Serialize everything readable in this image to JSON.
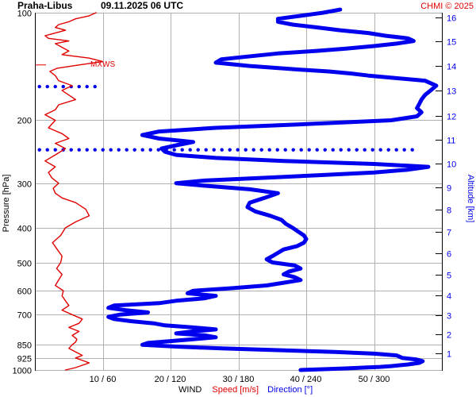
{
  "chart_data": {
    "type": "line",
    "title": "Praha-Libus",
    "datetime": "09.11.2025 06 UTC",
    "credit": "CHMI © 2025",
    "annotation": "MXWS",
    "annotation_pressure": 140,
    "left_axis": {
      "label": "Pressure [hPa]",
      "scale": "log",
      "range": [
        100,
        1000
      ],
      "ticks": [
        100,
        200,
        300,
        400,
        500,
        600,
        700,
        850,
        925,
        1000
      ]
    },
    "right_axis": {
      "label": "Altitude [km]",
      "ticks": [
        1,
        2,
        3,
        4,
        5,
        6,
        7,
        8,
        9,
        10,
        11,
        12,
        13,
        14,
        15,
        16
      ],
      "tick_pressures": [
        900,
        795,
        701,
        617,
        541,
        472,
        410,
        356,
        308,
        265,
        227,
        194,
        165,
        141,
        120,
        103
      ]
    },
    "bottom_axis": {
      "labels": [
        "10 / 60",
        "20 / 120",
        "30 / 180",
        "40 / 240",
        "50 / 300"
      ],
      "ticks": [
        10,
        20,
        30,
        40,
        50
      ],
      "range": [
        0,
        60
      ],
      "title_prefix": "WIND",
      "speed_label": "Speed [m/s]",
      "direction_label": "Direction [°]"
    },
    "grid": true,
    "colors": {
      "speed": "#e00000",
      "direction": "#0000ee",
      "grid": "#b0b0b0",
      "text": "#000000",
      "credit": "#e00000"
    },
    "series": [
      {
        "name": "Speed [m/s]",
        "units": "m/s",
        "points": [
          [
            1000,
            4.5
          ],
          [
            985,
            6
          ],
          [
            970,
            7
          ],
          [
            955,
            8
          ],
          [
            940,
            7
          ],
          [
            925,
            6
          ],
          [
            910,
            7
          ],
          [
            890,
            6
          ],
          [
            870,
            5
          ],
          [
            850,
            5.5
          ],
          [
            835,
            6
          ],
          [
            820,
            6.2
          ],
          [
            800,
            5.5
          ],
          [
            780,
            6.5
          ],
          [
            760,
            5
          ],
          [
            740,
            6.5
          ],
          [
            720,
            7
          ],
          [
            700,
            5.5
          ],
          [
            680,
            4
          ],
          [
            660,
            5
          ],
          [
            640,
            4.5
          ],
          [
            620,
            4
          ],
          [
            600,
            4.2
          ],
          [
            580,
            3
          ],
          [
            560,
            3.5
          ],
          [
            540,
            4
          ],
          [
            520,
            3.2
          ],
          [
            500,
            3.8
          ],
          [
            480,
            4
          ],
          [
            460,
            3.3
          ],
          [
            440,
            2.6
          ],
          [
            420,
            3.8
          ],
          [
            400,
            4.5
          ],
          [
            385,
            6
          ],
          [
            370,
            8
          ],
          [
            355,
            7.5
          ],
          [
            340,
            6
          ],
          [
            330,
            4
          ],
          [
            320,
            3
          ],
          [
            310,
            2.7
          ],
          [
            300,
            3.5
          ],
          [
            290,
            2.5
          ],
          [
            280,
            2
          ],
          [
            270,
            3
          ],
          [
            260,
            1.5
          ],
          [
            250,
            3
          ],
          [
            240,
            4.5
          ],
          [
            232,
            3
          ],
          [
            225,
            5
          ],
          [
            218,
            4
          ],
          [
            210,
            2
          ],
          [
            200,
            3
          ],
          [
            193,
            1.5
          ],
          [
            187,
            3
          ],
          [
            181,
            3.5
          ],
          [
            175,
            6
          ],
          [
            170,
            5
          ],
          [
            165,
            4
          ],
          [
            160,
            5.5
          ],
          [
            155,
            3.5
          ],
          [
            150,
            3
          ],
          [
            146,
            2.2
          ],
          [
            143,
            3.3
          ],
          [
            140,
            6.5
          ],
          [
            137,
            10
          ],
          [
            134,
            8
          ],
          [
            131,
            4
          ],
          [
            128,
            5
          ],
          [
            125,
            4
          ],
          [
            122,
            3
          ],
          [
            120,
            5
          ],
          [
            118,
            2
          ],
          [
            116,
            1.5
          ],
          [
            114,
            3
          ],
          [
            112,
            4.5
          ],
          [
            110,
            3
          ],
          [
            108,
            3.5
          ],
          [
            106,
            5
          ],
          [
            104,
            6
          ],
          [
            102,
            8
          ],
          [
            100,
            9
          ]
        ]
      },
      {
        "name": "Direction [°]",
        "units": "deg",
        "points": [
          [
            1000,
            235
          ],
          [
            995,
            255
          ],
          [
            990,
            275
          ],
          [
            985,
            290
          ],
          [
            980,
            305
          ],
          [
            975,
            315
          ],
          [
            965,
            330
          ],
          [
            955,
            340
          ],
          [
            945,
            343
          ],
          [
            935,
            338
          ],
          [
            925,
            325
          ],
          [
            910,
            320
          ],
          [
            900,
            300
          ],
          [
            890,
            265
          ],
          [
            880,
            215
          ],
          [
            870,
            165
          ],
          [
            860,
            125
          ],
          [
            850,
            95
          ],
          [
            840,
            100
          ],
          [
            830,
            120
          ],
          [
            820,
            140
          ],
          [
            810,
            160
          ],
          [
            800,
            150
          ],
          [
            790,
            125
          ],
          [
            780,
            140
          ],
          [
            770,
            160
          ],
          [
            760,
            140
          ],
          [
            750,
            115
          ],
          [
            740,
            105
          ],
          [
            730,
            85
          ],
          [
            720,
            70
          ],
          [
            710,
            65
          ],
          [
            700,
            75
          ],
          [
            690,
            100
          ],
          [
            680,
            80
          ],
          [
            670,
            65
          ],
          [
            660,
            70
          ],
          [
            650,
            110
          ],
          [
            640,
            125
          ],
          [
            630,
            150
          ],
          [
            620,
            160
          ],
          [
            610,
            135
          ],
          [
            600,
            140
          ],
          [
            590,
            175
          ],
          [
            580,
            205
          ],
          [
            570,
            220
          ],
          [
            560,
            235
          ],
          [
            550,
            230
          ],
          [
            540,
            220
          ],
          [
            530,
            225
          ],
          [
            520,
            235
          ],
          [
            510,
            230
          ],
          [
            500,
            210
          ],
          [
            490,
            205
          ],
          [
            480,
            210
          ],
          [
            470,
            215
          ],
          [
            460,
            220
          ],
          [
            450,
            232
          ],
          [
            440,
            238
          ],
          [
            430,
            240
          ],
          [
            420,
            238
          ],
          [
            410,
            233
          ],
          [
            400,
            228
          ],
          [
            390,
            222
          ],
          [
            380,
            218
          ],
          [
            370,
            208
          ],
          [
            360,
            195
          ],
          [
            350,
            188
          ],
          [
            340,
            190
          ],
          [
            330,
            203
          ],
          [
            320,
            215
          ],
          [
            312,
            190
          ],
          [
            305,
            150
          ],
          [
            300,
            125
          ],
          [
            295,
            150
          ],
          [
            290,
            200
          ],
          [
            285,
            250
          ],
          [
            280,
            300
          ],
          [
            275,
            330
          ],
          [
            270,
            348
          ],
          [
            265,
            300
          ],
          [
            260,
            220
          ],
          [
            255,
            160
          ],
          [
            250,
            125
          ],
          [
            245,
            115
          ],
          [
            240,
            112
          ],
          [
            235,
            125
          ],
          [
            230,
            140
          ],
          [
            225,
            110
          ],
          [
            220,
            95
          ],
          [
            215,
            110
          ],
          [
            210,
            160
          ],
          [
            205,
            240
          ],
          [
            200,
            315
          ],
          [
            195,
            338
          ],
          [
            190,
            342
          ],
          [
            185,
            338
          ],
          [
            180,
            340
          ],
          [
            175,
            342
          ],
          [
            170,
            345
          ],
          [
            165,
            350
          ],
          [
            160,
            355
          ],
          [
            155,
            345
          ],
          [
            150,
            295
          ],
          [
            148,
            280
          ],
          [
            146,
            260
          ],
          [
            144,
            230
          ],
          [
            141,
            190
          ],
          [
            138,
            160
          ],
          [
            135,
            165
          ],
          [
            133,
            185
          ],
          [
            130,
            215
          ],
          [
            128,
            248
          ],
          [
            126,
            275
          ],
          [
            124,
            300
          ],
          [
            122,
            320
          ],
          [
            120,
            335
          ],
          [
            118,
            330
          ],
          [
            116,
            310
          ],
          [
            114,
            295
          ],
          [
            112,
            270
          ],
          [
            110,
            250
          ],
          [
            108,
            228
          ],
          [
            106,
            215
          ],
          [
            104,
            215
          ],
          [
            102,
            235
          ],
          [
            100,
            255
          ],
          [
            98,
            270
          ]
        ]
      }
    ],
    "dotted_segments": [
      {
        "pressure": 161,
        "from": 4,
        "to": 60
      },
      {
        "pressure": 242,
        "from": 4,
        "to": 338
      }
    ]
  }
}
